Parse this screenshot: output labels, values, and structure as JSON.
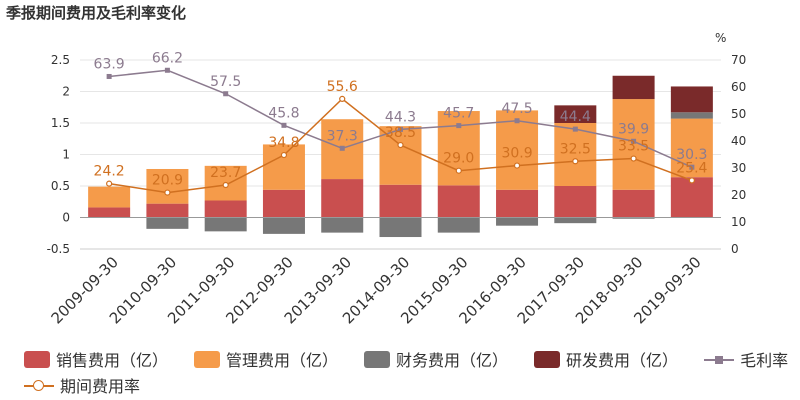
{
  "chart_data": {
    "type": "bar",
    "title": "季报期间费用及毛利率变化",
    "y2_unit": "%",
    "categories": [
      "2009-09-30",
      "2010-09-30",
      "2011-09-30",
      "2012-09-30",
      "2013-09-30",
      "2014-09-30",
      "2015-09-30",
      "2016-09-30",
      "2017-09-30",
      "2018-09-30",
      "2019-09-30"
    ],
    "ylim": [
      -0.5,
      2.5
    ],
    "y_ticks": [
      "2.5",
      "2",
      "1.5",
      "1",
      "0.5",
      "0",
      "-0.5"
    ],
    "y2lim": [
      0,
      70
    ],
    "y2_ticks": [
      "70",
      "60",
      "50",
      "40",
      "30",
      "20",
      "10",
      "0"
    ],
    "series": [
      {
        "name": "销售费用（亿）",
        "type": "bar",
        "color": "#c94f4f",
        "values": [
          0.16,
          0.22,
          0.27,
          0.44,
          0.61,
          0.52,
          0.51,
          0.44,
          0.5,
          0.44,
          0.64
        ]
      },
      {
        "name": "管理费用（亿）",
        "type": "bar",
        "color": "#f59b4a",
        "values": [
          0.33,
          0.55,
          0.55,
          0.72,
          0.95,
          0.93,
          1.18,
          1.26,
          1.0,
          1.44,
          0.93
        ]
      },
      {
        "name": "财务费用（亿）",
        "type": "bar",
        "color": "#777777",
        "values": [
          0.0,
          -0.18,
          -0.22,
          -0.26,
          -0.24,
          -0.31,
          -0.24,
          -0.13,
          -0.09,
          -0.02,
          0.1
        ]
      },
      {
        "name": "研发费用（亿）",
        "type": "bar",
        "color": "#7a2a2a",
        "values": [
          0,
          0,
          0,
          0,
          0,
          0,
          0,
          0,
          0.28,
          0.37,
          0.41
        ]
      },
      {
        "name": "毛利率",
        "type": "line",
        "axis": "right",
        "color": "#8c7b8f",
        "values": [
          63.9,
          66.2,
          57.5,
          45.8,
          37.3,
          44.3,
          45.7,
          47.5,
          44.4,
          39.9,
          30.3
        ],
        "labels": [
          "63.9",
          "66.2",
          "57.5",
          "45.8",
          "37.3",
          "44.3",
          "45.7",
          "47.5",
          "44.4",
          "39.9",
          "30.3"
        ]
      },
      {
        "name": "期间费用率",
        "type": "line",
        "axis": "right",
        "color": "#d07020",
        "values": [
          24.2,
          20.9,
          23.7,
          34.8,
          55.6,
          38.5,
          29.0,
          30.9,
          32.5,
          33.5,
          25.4
        ],
        "labels": [
          "24.2",
          "20.9",
          "23.7",
          "34.8",
          "55.6",
          "38.5",
          "29.0",
          "30.9",
          "32.5",
          "33.5",
          "25.4"
        ]
      }
    ]
  }
}
